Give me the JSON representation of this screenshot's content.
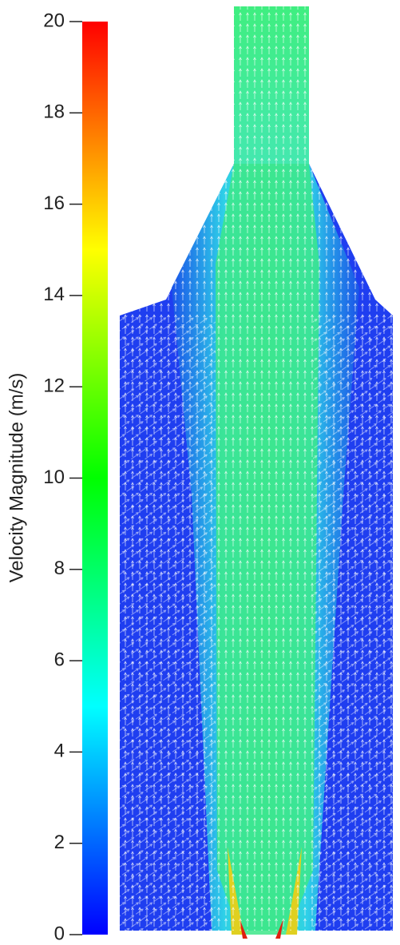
{
  "chart_data": {
    "type": "vector-field",
    "colorbar": {
      "label": "Velocity Magnitude (m/s)",
      "lim": [
        0,
        20
      ],
      "ticks": [
        0,
        2,
        4,
        6,
        8,
        10,
        12,
        14,
        16,
        18,
        20
      ],
      "colors": [
        "#0000ff",
        "#00ffff",
        "#00ff00",
        "#ffff00",
        "#ff0000"
      ]
    }
  }
}
